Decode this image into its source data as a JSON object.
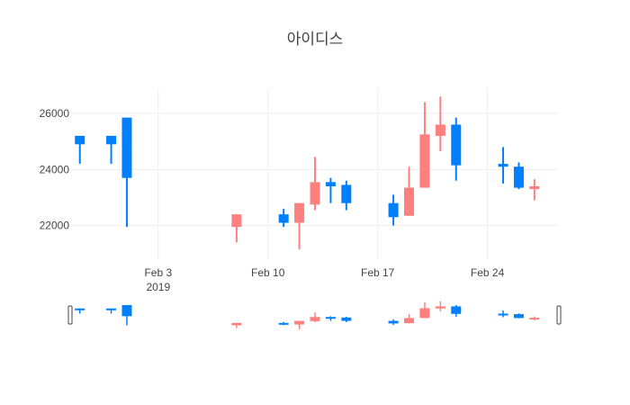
{
  "chart_data": {
    "type": "candlestick",
    "title": "아이디스",
    "xlabel": "",
    "ylabel": "",
    "xlim": [
      "2019-01-28T12:00",
      "2019-02-28T12:00"
    ],
    "ylim": [
      20800,
      26900
    ],
    "y_ticks": [
      22000,
      24000,
      26000
    ],
    "x_ticks": [
      {
        "date": "2019-02-03",
        "label": "Feb 3",
        "sublabel": "2019"
      },
      {
        "date": "2019-02-10",
        "label": "Feb 10",
        "sublabel": ""
      },
      {
        "date": "2019-02-17",
        "label": "Feb 17",
        "sublabel": ""
      },
      {
        "date": "2019-02-24",
        "label": "Feb 24",
        "sublabel": ""
      }
    ],
    "grid": true,
    "rangeslider": true,
    "colors": {
      "increasing": "#FF7F7F",
      "decreasing": "#007FFF"
    },
    "candles": [
      {
        "date": "2019-01-29",
        "open": 25200,
        "high": 25200,
        "low": 24200,
        "close": 24900
      },
      {
        "date": "2019-01-31",
        "open": 25200,
        "high": 25200,
        "low": 24200,
        "close": 24900
      },
      {
        "date": "2019-02-01",
        "open": 25850,
        "high": 25850,
        "low": 21950,
        "close": 23700
      },
      {
        "date": "2019-02-08",
        "open": 21950,
        "high": 22400,
        "low": 21400,
        "close": 22400
      },
      {
        "date": "2019-02-11",
        "open": 22400,
        "high": 22600,
        "low": 21950,
        "close": 22100
      },
      {
        "date": "2019-02-12",
        "open": 22100,
        "high": 22800,
        "low": 21150,
        "close": 22800
      },
      {
        "date": "2019-02-13",
        "open": 22750,
        "high": 24450,
        "low": 22550,
        "close": 23550
      },
      {
        "date": "2019-02-14",
        "open": 23550,
        "high": 23700,
        "low": 22800,
        "close": 23400
      },
      {
        "date": "2019-02-15",
        "open": 23450,
        "high": 23600,
        "low": 22550,
        "close": 22800
      },
      {
        "date": "2019-02-18",
        "open": 22800,
        "high": 23100,
        "low": 22000,
        "close": 22300
      },
      {
        "date": "2019-02-19",
        "open": 22350,
        "high": 24100,
        "low": 22350,
        "close": 23350
      },
      {
        "date": "2019-02-20",
        "open": 23350,
        "high": 26400,
        "low": 23350,
        "close": 25250
      },
      {
        "date": "2019-02-21",
        "open": 25200,
        "high": 26600,
        "low": 24650,
        "close": 25600
      },
      {
        "date": "2019-02-22",
        "open": 25600,
        "high": 25850,
        "low": 23600,
        "close": 24150
      },
      {
        "date": "2019-02-25",
        "open": 24200,
        "high": 24800,
        "low": 23500,
        "close": 24100
      },
      {
        "date": "2019-02-26",
        "open": 24100,
        "high": 24250,
        "low": 23300,
        "close": 23350
      },
      {
        "date": "2019-02-27",
        "open": 23300,
        "high": 23650,
        "low": 22900,
        "close": 23400
      }
    ]
  }
}
